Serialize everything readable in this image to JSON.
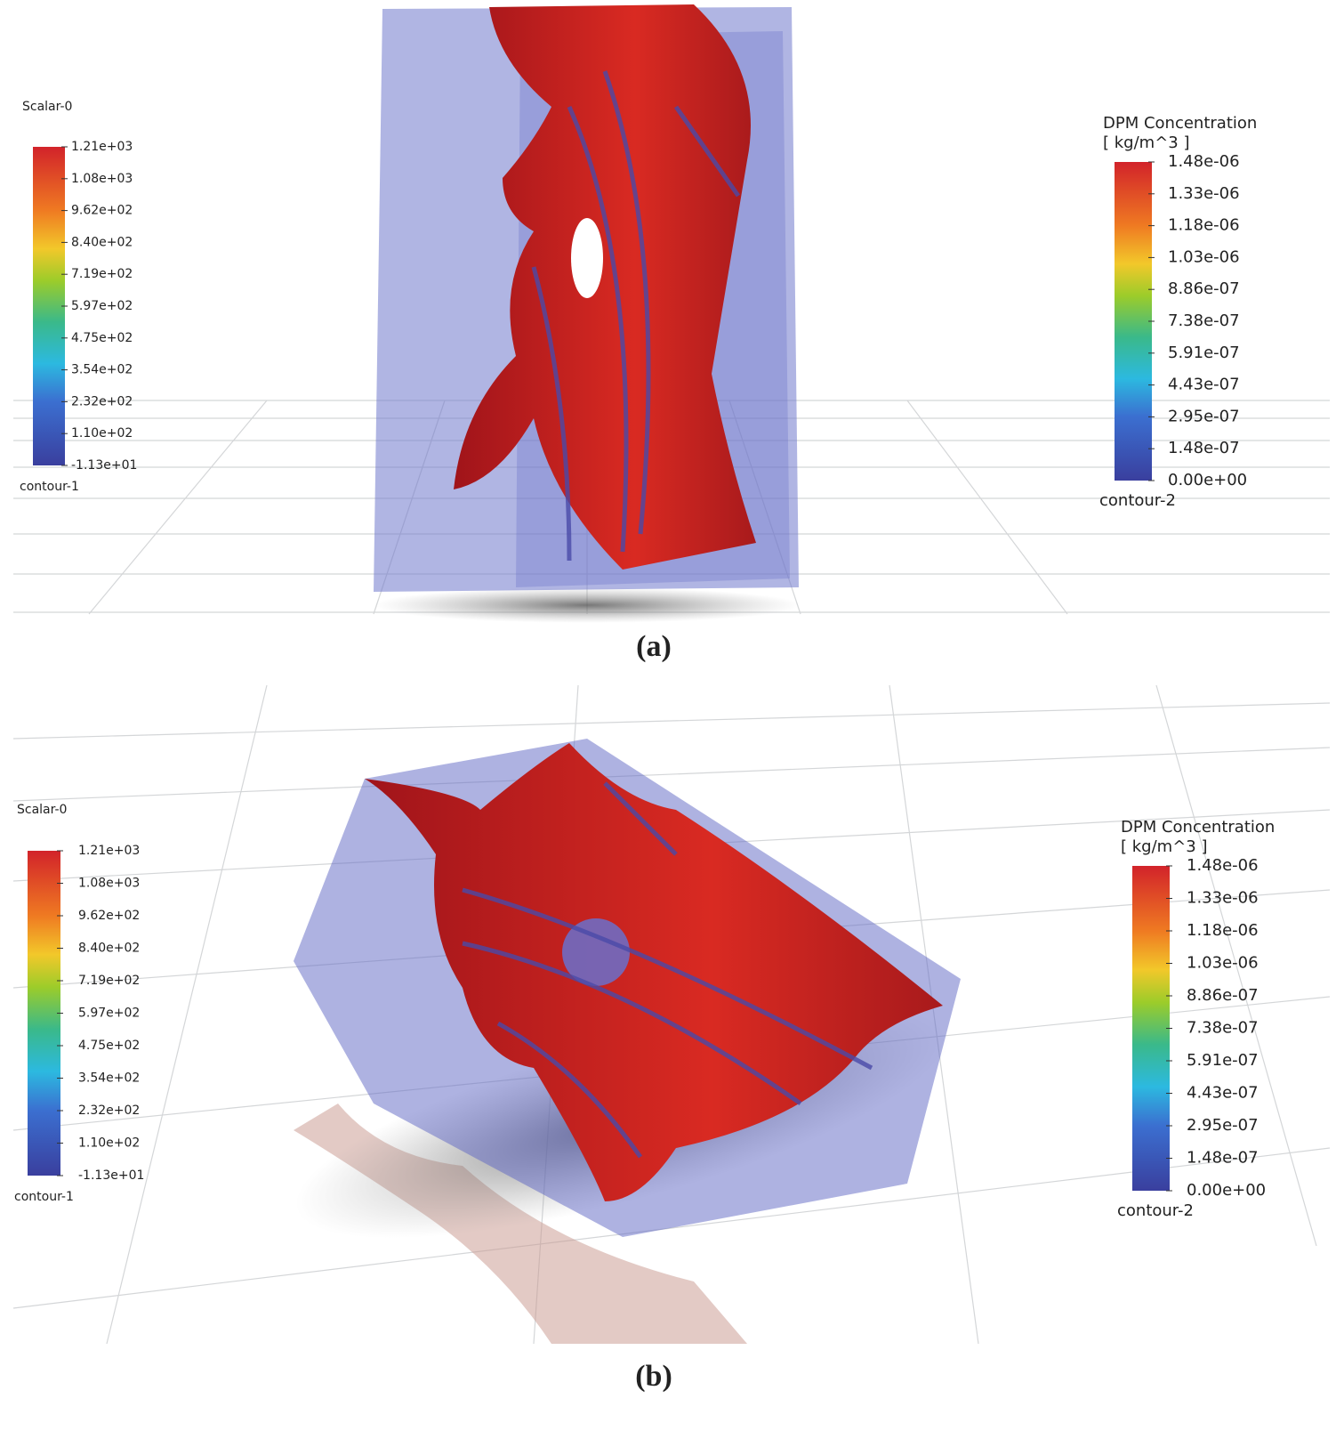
{
  "panels": [
    {
      "caption": "(a)",
      "legend_left": {
        "title": "Scalar-0",
        "ticks": [
          "1.21e+03",
          "1.08e+03",
          "9.62e+02",
          "8.40e+02",
          "7.19e+02",
          "5.97e+02",
          "4.75e+02",
          "3.54e+02",
          "2.32e+02",
          "1.10e+02",
          "-1.13e+01"
        ],
        "name": "contour-1"
      },
      "legend_right": {
        "title": "DPM Concentration",
        "unit": "[ kg/m^3 ]",
        "ticks": [
          "1.48e-06",
          "1.33e-06",
          "1.18e-06",
          "1.03e-06",
          "8.86e-07",
          "7.38e-07",
          "5.91e-07",
          "4.43e-07",
          "2.95e-07",
          "1.48e-07",
          "0.00e+00"
        ],
        "name": "contour-2"
      }
    },
    {
      "caption": "(b)",
      "legend_left": {
        "title": "Scalar-0",
        "ticks": [
          "1.21e+03",
          "1.08e+03",
          "9.62e+02",
          "8.40e+02",
          "7.19e+02",
          "5.97e+02",
          "4.75e+02",
          "3.54e+02",
          "2.32e+02",
          "1.10e+02",
          "-1.13e+01"
        ],
        "name": "contour-1"
      },
      "legend_right": {
        "title": "DPM Concentration",
        "unit": "[ kg/m^3 ]",
        "ticks": [
          "1.48e-06",
          "1.33e-06",
          "1.18e-06",
          "1.03e-06",
          "8.86e-07",
          "7.38e-07",
          "5.91e-07",
          "4.43e-07",
          "2.95e-07",
          "1.48e-07",
          "0.00e+00"
        ],
        "name": "contour-2"
      }
    }
  ]
}
